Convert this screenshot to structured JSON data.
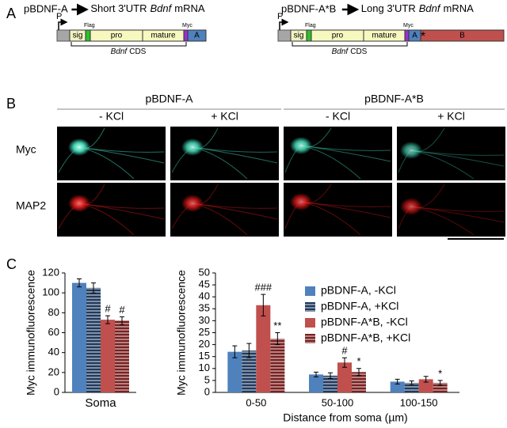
{
  "panel_a": {
    "label": "A",
    "constructs": [
      {
        "plasmid": "pBDNF-A",
        "utr": "Short 3'UTR",
        "gene": "Bdnf",
        "rna": "mRNA",
        "promoter": "P",
        "flag": "Flag",
        "myc": "Myc",
        "segments": [
          "sig",
          "pro",
          "mature"
        ],
        "utr_parts": [
          "A"
        ],
        "cds_gene": "Bdnf",
        "cds": "CDS"
      },
      {
        "plasmid": "pBDNF-A*B",
        "utr": "Long 3'UTR",
        "gene": "Bdnf",
        "rna": "mRNA",
        "promoter": "P",
        "flag": "Flag",
        "myc": "Myc",
        "segments": [
          "sig",
          "pro",
          "mature"
        ],
        "utr_parts": [
          "A",
          "B"
        ],
        "star": "*",
        "cds_gene": "Bdnf",
        "cds": "CDS"
      }
    ]
  },
  "panel_b": {
    "label": "B",
    "groups": [
      {
        "name": "pBDNF-A",
        "conditions": [
          "- KCl",
          "+ KCl"
        ]
      },
      {
        "name": "pBDNF-A*B",
        "conditions": [
          "- KCl",
          "+ KCl"
        ]
      }
    ],
    "rows": [
      "Myc",
      "MAP2"
    ]
  },
  "panel_c": {
    "label": "C"
  },
  "chart_data": [
    {
      "type": "bar",
      "ylabel": "Myc immunofluorescence",
      "categories": [
        "Soma"
      ],
      "ylim": [
        0,
        120
      ],
      "yticks": [
        0,
        20,
        40,
        60,
        80,
        100,
        120
      ],
      "series": [
        {
          "color": "#4f81bd",
          "values": [
            110
          ],
          "errors": [
            4
          ]
        },
        {
          "color": "#1f3a5f",
          "hatch": true,
          "values": [
            105
          ],
          "errors": [
            5
          ]
        },
        {
          "color": "#c0504d",
          "values": [
            73
          ],
          "errors": [
            4
          ],
          "significance": [
            "#"
          ]
        },
        {
          "color": "#7b1f1f",
          "hatch": true,
          "values": [
            72
          ],
          "errors": [
            4
          ],
          "significance": [
            "#"
          ]
        }
      ]
    },
    {
      "type": "bar",
      "ylabel": "Myc immunofluorescence",
      "xlabel": "Distance from soma (µm)",
      "categories": [
        "0-50",
        "50-100",
        "100-150"
      ],
      "ylim": [
        0,
        50
      ],
      "yticks": [
        0,
        5,
        10,
        15,
        20,
        25,
        30,
        35,
        40,
        45,
        50
      ],
      "legend": "upper right",
      "series": [
        {
          "name": "pBDNF-A, -KCl",
          "color": "#4f81bd",
          "values": [
            17,
            7.5,
            4.5
          ],
          "errors": [
            2.5,
            1,
            1
          ]
        },
        {
          "name": "pBDNF-A, +KCl",
          "color": "#1f3a5f",
          "hatch": true,
          "values": [
            17.5,
            7,
            4
          ],
          "errors": [
            3,
            1.2,
            0.8
          ]
        },
        {
          "name": "pBDNF-A*B, -KCl",
          "color": "#c0504d",
          "values": [
            36.5,
            12.5,
            5.5
          ],
          "errors": [
            4.5,
            2,
            1.2
          ],
          "significance": [
            "###",
            "#",
            null
          ]
        },
        {
          "name": "pBDNF-A*B, +KCl",
          "color": "#7b1f1f",
          "hatch": true,
          "values": [
            22.5,
            8.5,
            4
          ],
          "errors": [
            2.5,
            1.5,
            1
          ],
          "significance": [
            "**",
            "*",
            "*"
          ]
        }
      ]
    }
  ]
}
